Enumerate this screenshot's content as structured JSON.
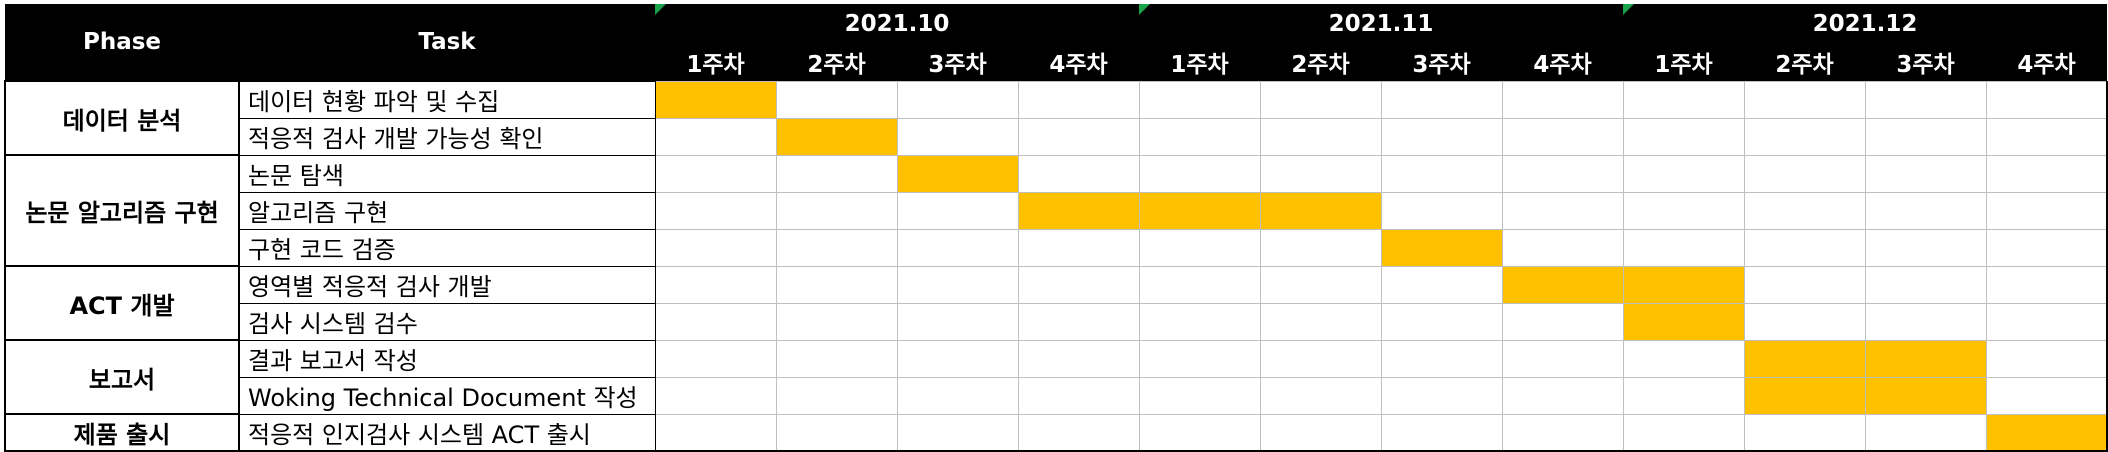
{
  "header": {
    "phase_label": "Phase",
    "task_label": "Task",
    "months": [
      {
        "label": "2021.10",
        "weeks": [
          "1주차",
          "2주차",
          "3주차",
          "4주차"
        ]
      },
      {
        "label": "2021.11",
        "weeks": [
          "1주차",
          "2주차",
          "3주차",
          "4주차"
        ]
      },
      {
        "label": "2021.12",
        "weeks": [
          "1주차",
          "2주차",
          "3주차",
          "4주차"
        ]
      }
    ]
  },
  "colors": {
    "bar": "#ffc000",
    "header_bg": "#000000",
    "header_text": "#ffffff",
    "month_marker": "#1aa34a"
  },
  "phases": [
    {
      "label": "데이터 분석",
      "tasks": [
        {
          "label": "데이터 현황 파악 및 수집",
          "weeks": [
            1
          ]
        },
        {
          "label": "적응적 검사 개발 가능성 확인",
          "weeks": [
            2
          ]
        }
      ]
    },
    {
      "label": "논문 알고리즘 구현",
      "tasks": [
        {
          "label": "논문 탐색",
          "weeks": [
            3
          ]
        },
        {
          "label": "알고리즘 구현",
          "weeks": [
            4,
            5,
            6
          ]
        },
        {
          "label": "구현 코드 검증",
          "weeks": [
            7
          ]
        }
      ]
    },
    {
      "label": "ACT 개발",
      "tasks": [
        {
          "label": "영역별 적응적 검사 개발",
          "weeks": [
            8,
            9
          ]
        },
        {
          "label": "검사 시스템 검수",
          "weeks": [
            9
          ]
        }
      ]
    },
    {
      "label": "보고서",
      "tasks": [
        {
          "label": "결과 보고서 작성",
          "weeks": [
            10,
            11
          ]
        },
        {
          "label": "Woking Technical Document 작성",
          "weeks": [
            10,
            11
          ]
        }
      ]
    },
    {
      "label": "제품 출시",
      "tasks": [
        {
          "label": "적응적 인지검사 시스템 ACT 출시",
          "weeks": [
            12
          ]
        }
      ]
    }
  ]
}
